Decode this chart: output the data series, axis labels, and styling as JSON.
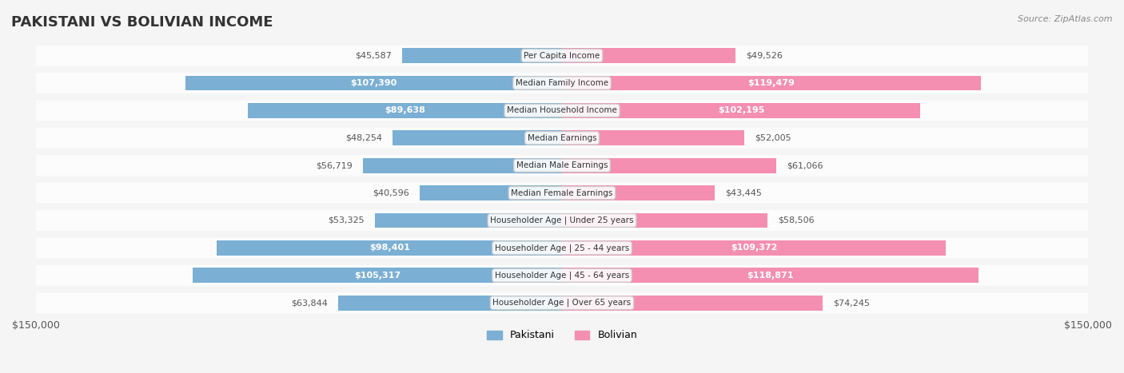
{
  "title": "PAKISTANI VS BOLIVIAN INCOME",
  "source": "Source: ZipAtlas.com",
  "categories": [
    "Per Capita Income",
    "Median Family Income",
    "Median Household Income",
    "Median Earnings",
    "Median Male Earnings",
    "Median Female Earnings",
    "Householder Age | Under 25 years",
    "Householder Age | 25 - 44 years",
    "Householder Age | 45 - 64 years",
    "Householder Age | Over 65 years"
  ],
  "pakistani_values": [
    45587,
    107390,
    89638,
    48254,
    56719,
    40596,
    53325,
    98401,
    105317,
    63844
  ],
  "bolivian_values": [
    49526,
    119479,
    102195,
    52005,
    61066,
    43445,
    58506,
    109372,
    118871,
    74245
  ],
  "pakistani_labels": [
    "$45,587",
    "$107,390",
    "$89,638",
    "$48,254",
    "$56,719",
    "$40,596",
    "$53,325",
    "$98,401",
    "$105,317",
    "$63,844"
  ],
  "bolivian_labels": [
    "$49,526",
    "$119,479",
    "$102,195",
    "$52,005",
    "$61,066",
    "$43,445",
    "$58,506",
    "$109,372",
    "$118,871",
    "$74,245"
  ],
  "pakistani_color": "#7bafd4",
  "bolivian_color": "#f48fb1",
  "pakistani_label_inside": [
    false,
    true,
    true,
    false,
    false,
    false,
    false,
    true,
    true,
    false
  ],
  "bolivian_label_inside": [
    false,
    true,
    true,
    false,
    false,
    false,
    false,
    true,
    true,
    false
  ],
  "max_value": 150000,
  "bg_color": "#f5f5f5",
  "row_bg_color": "#ececec",
  "title_color": "#333333",
  "source_color": "#888888",
  "legend_pakistani": "Pakistani",
  "legend_bolivian": "Bolivian"
}
